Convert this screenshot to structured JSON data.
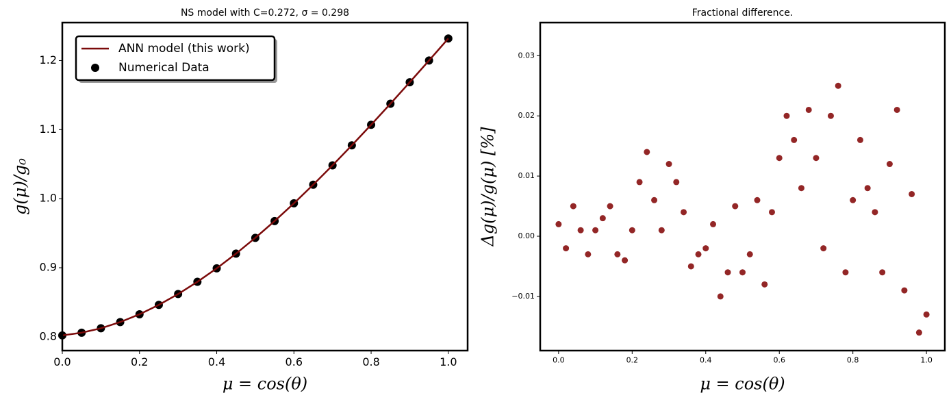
{
  "chart_data": [
    {
      "type": "line",
      "title": "NS model with C=0.272, σ = 0.298",
      "xlabel": "μ = cos(θ)",
      "ylabel": "g(μ)/g₀",
      "x": [
        0,
        0.05,
        0.1,
        0.15,
        0.2,
        0.25,
        0.3,
        0.35,
        0.4,
        0.45,
        0.5,
        0.55,
        0.6,
        0.65,
        0.7,
        0.75,
        0.8,
        0.85,
        0.9,
        0.95,
        1.0
      ],
      "series": [
        {
          "name": "ANN model (this work)",
          "type": "line",
          "color": "#7b0a0a",
          "values": [
            0.802,
            0.8059,
            0.8123,
            0.8213,
            0.8326,
            0.8462,
            0.8619,
            0.8796,
            0.8991,
            0.9204,
            0.9433,
            0.9676,
            0.9933,
            1.0202,
            1.0482,
            1.0772,
            1.107,
            1.1375,
            1.1686,
            1.2001,
            1.232
          ]
        },
        {
          "name": "Numerical Data",
          "type": "scatter",
          "color": "#000000",
          "values": [
            0.802,
            0.8059,
            0.8123,
            0.8213,
            0.8326,
            0.8462,
            0.8619,
            0.8796,
            0.8991,
            0.9204,
            0.9433,
            0.9676,
            0.9933,
            1.0202,
            1.0482,
            1.0772,
            1.107,
            1.1375,
            1.1686,
            1.2001,
            1.232
          ]
        }
      ],
      "xlim": [
        0,
        1.05
      ],
      "xticks": [
        {
          "value": 0,
          "label": "0.0"
        },
        0.2,
        0.4,
        0.6,
        0.8,
        {
          "value": 1,
          "label": "1.0"
        }
      ],
      "ylim": [
        0.78,
        1.255
      ],
      "yticks": [
        0.8,
        0.9,
        {
          "value": 1,
          "label": "1.0"
        },
        1.1,
        1.2
      ],
      "legend": "upper left"
    },
    {
      "type": "scatter",
      "title": "Fractional difference.",
      "xlabel": "μ = cos(θ)",
      "ylabel": "Δg(μ)/g(μ)  [%]",
      "color": "#800000",
      "x": [
        0,
        0.02,
        0.04,
        0.06,
        0.08,
        0.1,
        0.12,
        0.14,
        0.16,
        0.18,
        0.2,
        0.22,
        0.24,
        0.26,
        0.28,
        0.3,
        0.32,
        0.34,
        0.36,
        0.38,
        0.4,
        0.42,
        0.44,
        0.46,
        0.48,
        0.5,
        0.52,
        0.54,
        0.56,
        0.58,
        0.6,
        0.62,
        0.64,
        0.66,
        0.68,
        0.7,
        0.72,
        0.74,
        0.76,
        0.78,
        0.8,
        0.82,
        0.84,
        0.86,
        0.88,
        0.9,
        0.92,
        0.94,
        0.96,
        0.98,
        1.0
      ],
      "values": [
        0.002,
        -0.002,
        0.005,
        0.001,
        -0.003,
        0.001,
        0.003,
        0.005,
        -0.003,
        -0.004,
        0.001,
        0.009,
        0.014,
        0.006,
        0.001,
        0.012,
        0.009,
        0.004,
        -0.005,
        -0.003,
        -0.002,
        0.002,
        -0.01,
        -0.006,
        0.005,
        -0.006,
        -0.003,
        0.006,
        -0.008,
        0.004,
        0.013,
        0.02,
        0.016,
        0.008,
        0.021,
        0.013,
        -0.002,
        0.02,
        0.025,
        -0.006,
        0.006,
        0.016,
        0.008,
        0.004,
        -0.006,
        0.012,
        0.021,
        -0.009,
        0.007,
        -0.016,
        -0.013
      ],
      "xlim": [
        -0.05,
        1.05
      ],
      "xticks": [
        {
          "value": 0,
          "label": "0.0"
        },
        0.2,
        0.4,
        0.6,
        0.8,
        {
          "value": 1,
          "label": "1.0"
        }
      ],
      "ylim": [
        -0.019,
        0.0355
      ],
      "yticks": [
        {
          "value": -0.01,
          "label": "−0.01"
        },
        {
          "value": 0,
          "label": "0.00"
        },
        0.01,
        0.02,
        0.03
      ]
    }
  ]
}
